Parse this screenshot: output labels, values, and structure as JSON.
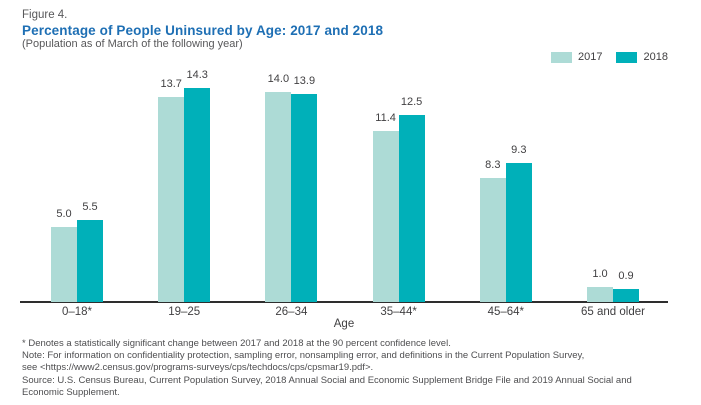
{
  "figure_label": "Figure 4.",
  "title": "Percentage of People Uninsured by Age: 2017 and 2018",
  "subtitle": "(Population as of March of the following year)",
  "legend": {
    "items": [
      {
        "label": "2017",
        "color": "#addbd6"
      },
      {
        "label": "2018",
        "color": "#00b0b9"
      }
    ]
  },
  "chart_data": {
    "type": "bar",
    "title": "Percentage of People Uninsured by Age: 2017 and 2018",
    "subtitle": "(Population as of March of the following year)",
    "categories": [
      "0–18*",
      "19–25",
      "26–34",
      "35–44*",
      "45–64*",
      "65 and older"
    ],
    "series": [
      {
        "name": "2017",
        "color": "#addbd6",
        "values": [
          5.0,
          13.7,
          14.0,
          11.4,
          8.3,
          1.0
        ]
      },
      {
        "name": "2018",
        "color": "#00b0b9",
        "values": [
          5.5,
          14.3,
          13.9,
          12.5,
          9.3,
          0.9
        ]
      }
    ],
    "xlabel": "Age",
    "ylabel": "",
    "ylim": [
      0,
      15
    ],
    "grid": false,
    "value_labels": true,
    "value_label_format": "0.0",
    "legend_position": "top-right"
  },
  "footnotes": [
    "* Denotes a statistically significant change between 2017 and 2018 at the 90 percent confidence level.",
    "Note: For information on confidentiality protection, sampling error, nonsampling error, and definitions in the Current Population Survey,",
    "see <https://www2.census.gov/programs-surveys/cps/techdocs/cps/cpsmar19.pdf>.",
    "Source: U.S. Census Bureau, Current Population Survey, 2018 Annual Social and Economic Supplement Bridge File and 2019 Annual Social and",
    "Economic Supplement."
  ],
  "colors": {
    "title_blue": "#1e6fb4",
    "header_gray": "#58585a",
    "label_gray": "#414042",
    "footnote_gray": "#4e4e50",
    "axis": "#2e2e2e",
    "series_2017": "#addbd6",
    "series_2018": "#00b0b9"
  }
}
